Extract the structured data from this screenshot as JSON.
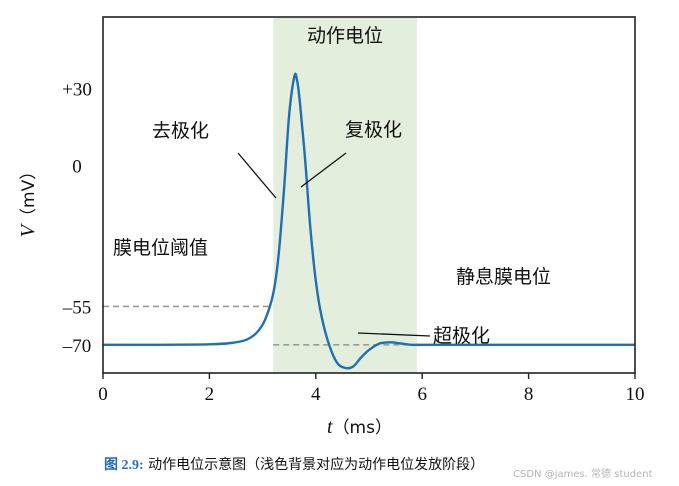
{
  "chart_data": {
    "type": "line",
    "title": "",
    "xlabel_var": "t",
    "xlabel_unit": "（ms）",
    "ylabel_var": "V",
    "ylabel_unit": "（mV）",
    "xlim": [
      0,
      10
    ],
    "ylim": [
      -81,
      58
    ],
    "x_ticks": [
      0,
      2,
      4,
      6,
      8,
      10
    ],
    "y_ticks": [
      {
        "value": 30,
        "label": "+30"
      },
      {
        "value": 0,
        "label": "0"
      },
      {
        "value": -55,
        "label": "–55"
      },
      {
        "value": -70,
        "label": "–70"
      }
    ],
    "shaded_region": {
      "x_start": 3.2,
      "x_end": 5.9,
      "color": "#e3efdc",
      "label": "动作电位"
    },
    "threshold": {
      "value": -55,
      "x_end": 3.2,
      "label": "膜电位阈值"
    },
    "resting_line": {
      "value": -70,
      "x_start": 3.2,
      "x_end": 6.0
    },
    "series": [
      {
        "color": "#1f6fb2",
        "x": [
          0,
          1,
          2,
          2.4,
          2.7,
          2.9,
          3.05,
          3.2,
          3.3,
          3.4,
          3.5,
          3.6,
          3.65,
          3.7,
          3.8,
          3.9,
          4.0,
          4.1,
          4.25,
          4.4,
          4.55,
          4.7,
          4.85,
          5.0,
          5.2,
          5.4,
          5.6,
          5.8,
          6.0,
          7,
          8,
          9,
          10
        ],
        "y": [
          -70,
          -70,
          -69.8,
          -69.3,
          -68,
          -65,
          -60,
          -50,
          -35,
          -10,
          20,
          35,
          33,
          25,
          2,
          -25,
          -45,
          -58,
          -70,
          -77,
          -79,
          -78.5,
          -75,
          -72,
          -69.5,
          -69,
          -69.5,
          -70,
          -70,
          -70,
          -70,
          -70,
          -70
        ]
      }
    ],
    "annotations": [
      {
        "text": "去极化",
        "x": 3.2,
        "y": 10
      },
      {
        "text": "复极化",
        "x": 3.9,
        "y": 10
      },
      {
        "text": "静息膜电位",
        "x": 8.0,
        "y": -67
      },
      {
        "text": "超极化",
        "x": 4.9,
        "y": -77
      }
    ]
  },
  "caption": {
    "figure_no": "图 2.9:",
    "text": " 动作电位示意图（浅色背景对应为动作电位发放阶段）"
  },
  "watermark": "CSDN @james. 常德 student"
}
